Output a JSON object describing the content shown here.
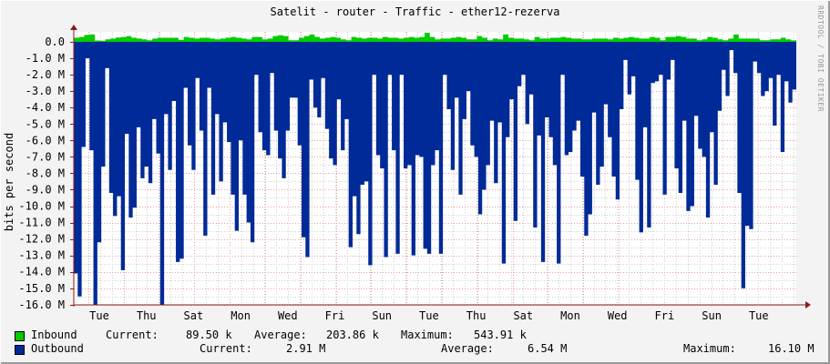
{
  "title": "Satelit - router - Traffic - ether12-rezerva",
  "watermark": "RRDTOOL / TOBI OETIKER",
  "colors": {
    "inbound": "#00cc00",
    "outbound": "#002a97",
    "grid_major": "#e8a0a0",
    "grid_minor": "#cfcfcf",
    "axis": "#8b1a1a",
    "background": "#f3f3f3",
    "canvas": "#ffffff"
  },
  "legend": {
    "inbound": {
      "label": "Inbound",
      "current_label": "Current:",
      "current": "89.50 k",
      "average_label": "Average:",
      "average": "203.86 k",
      "maximum_label": "Maximum:",
      "maximum": "543.91 k"
    },
    "outbound": {
      "label": "Outbound",
      "current_label": "Current:",
      "current": "2.91 M",
      "average_label": "Average:",
      "average": "6.54 M",
      "maximum_label": "Maximum:",
      "maximum": "16.10 M"
    }
  },
  "chart_data": {
    "type": "area",
    "title": "Satelit - router - Traffic - ether12-rezerva",
    "xlabel": "",
    "ylabel": "bits per second",
    "ylim": [
      -16000000,
      500000
    ],
    "yticks": [
      "0.0",
      "-1.0 M",
      "-2.0 M",
      "-3.0 M",
      "-4.0 M",
      "-5.0 M",
      "-6.0 M",
      "-7.0 M",
      "-8.0 M",
      "-9.0 M",
      "-10.0 M",
      "-11.0 M",
      "-12.0 M",
      "-13.0 M",
      "-14.0 M",
      "-15.0 M",
      "-16.0 M"
    ],
    "xticks": [
      "Tue",
      "Thu",
      "Sat",
      "Mon",
      "Wed",
      "Fri",
      "Sun",
      "Tue",
      "Thu",
      "Sat",
      "Mon",
      "Wed",
      "Fri",
      "Sun",
      "Tue"
    ],
    "grid": true,
    "legend_position": "bottom",
    "series": [
      {
        "name": "Inbound",
        "unit": "bits/s",
        "current": 89500,
        "average": 203860,
        "maximum": 543910,
        "values_k": [
          250,
          300,
          420,
          450,
          80,
          60,
          150,
          200,
          260,
          300,
          350,
          250,
          200,
          150,
          100,
          200,
          250,
          250,
          250,
          250,
          120,
          300,
          250,
          200,
          250,
          250,
          200,
          150,
          200,
          250,
          300,
          250,
          200,
          150,
          300,
          300,
          150,
          200,
          350,
          400,
          350,
          100,
          100,
          250,
          350,
          450,
          300,
          200,
          250,
          300,
          250,
          150,
          100,
          300,
          250,
          200,
          250,
          250,
          200,
          300,
          250,
          250,
          200,
          250,
          300,
          250,
          300,
          550,
          300,
          150,
          200,
          200,
          250,
          300,
          250,
          150,
          150,
          350,
          250,
          100,
          200,
          150,
          450,
          250,
          200,
          200,
          150,
          100,
          300,
          200,
          200,
          250,
          250,
          300,
          250,
          200,
          200,
          150,
          150,
          200,
          200,
          200,
          150,
          250,
          200,
          250,
          300,
          250,
          200,
          200,
          300,
          250,
          100,
          300,
          300,
          350,
          300,
          200,
          200,
          100,
          150,
          300,
          250,
          150,
          100,
          200,
          450,
          200,
          200,
          200,
          200,
          100,
          100,
          150,
          150,
          250,
          150,
          89.5
        ]
      },
      {
        "name": "Outbound",
        "unit": "bits/s",
        "current": -2910000,
        "average": -6540000,
        "maximum": -16100000,
        "values_M": [
          -14.1,
          -15.5,
          -6.4,
          -1.0,
          -6.6,
          -16.1,
          -12.2,
          -7.6,
          -1.6,
          -9.2,
          -10.6,
          -9.4,
          -13.9,
          -5.6,
          -10.7,
          -10.1,
          -5.2,
          -8.3,
          -7.6,
          -8.6,
          -4.7,
          -6.8,
          -16.1,
          -4.4,
          -7.8,
          -3.6,
          -13.4,
          -13.2,
          -2.8,
          -6.3,
          -7.8,
          -2.2,
          -5.4,
          -11.8,
          -2.8,
          -9.3,
          -4.4,
          -8.5,
          -4.9,
          -6.1,
          -9.3,
          -11.5,
          -6.0,
          -9.3,
          -11.0,
          -12.2,
          -2.0,
          -5.5,
          -6.6,
          -6.9,
          -1.9,
          -5.4,
          -7.1,
          -8.3,
          -5.4,
          -3.4,
          -3.4,
          -6.3,
          -11.9,
          -13.1,
          -2.3,
          -4.0,
          -4.6,
          -2.2,
          -5.3,
          -7.1,
          -7.5,
          -3.5,
          -6.6,
          -4.7,
          -12.5,
          -9.4,
          -11.7,
          -8.7,
          -8.5,
          -13.6,
          -2.0,
          -6.9,
          -7.7,
          -13.1,
          -2.0,
          -6.6,
          -12.9,
          -2.0,
          -7.7,
          -7.5,
          -13.0,
          -6.9,
          -7.0,
          -12.6,
          -12.9,
          -7.5,
          -6.6,
          -12.9,
          -2.0,
          -4.1,
          -7.8,
          -3.4,
          -9.3,
          -4.7,
          -3.0,
          -6.3,
          -7.0,
          -10.5,
          -9.0,
          -7.5,
          -4.8,
          -8.6,
          -4.9,
          -13.5,
          -5.8,
          -3.5,
          -10.9,
          -2.7,
          -2.0,
          -5.0,
          -3.2,
          -11.3,
          -5.7,
          -13.4,
          -4.6,
          -5.8,
          -7.5,
          -13.5,
          -2.0,
          -6.9,
          -6.7,
          -5.4,
          -4.8,
          -8.2,
          -11.8,
          -10.5,
          -4.3,
          -8.7,
          -7.6,
          -3.8,
          -5.8,
          -8.2,
          -9.6,
          -4.1,
          -1.1,
          -3.2,
          -2.1,
          -8.4,
          -11.6,
          -5.2,
          -11.3,
          -2.5,
          -2.4,
          -2.0,
          -9.3,
          -2.3,
          -1.1,
          -7.7,
          -9.2,
          -4.8,
          -10.3,
          -10.0,
          -4.5,
          -6.5,
          -7.0,
          -10.7,
          -5.5,
          -8.7,
          -4.2,
          -1.7,
          -3.3,
          -0.5,
          -1.9,
          -9.2,
          -15.0,
          -11.2,
          -11.4,
          -1.2,
          -1.9,
          -3.3,
          -3.0,
          -2.2,
          -5.1,
          -2.0,
          -6.7,
          -2.4,
          -3.7,
          -2.9
        ]
      }
    ]
  }
}
